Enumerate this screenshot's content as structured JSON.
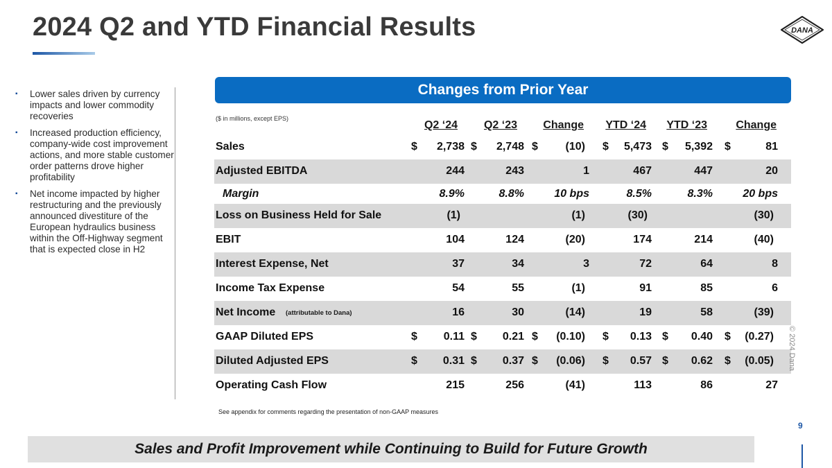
{
  "title": "2024 Q2 and YTD Financial Results",
  "logo_text": "DANA",
  "bullets": [
    "Lower sales driven by currency impacts and lower commodity recoveries",
    "Increased production efficiency, company-wide cost improvement actions, and more stable customer order patterns drove higher profitability",
    "Net income impacted by higher restructuring and the previously announced divestiture of the European hydraulics business within the Off-Highway segment that is expected close in H2"
  ],
  "bullet_marker": "▪",
  "banner": "Changes from Prior Year",
  "units_note": "($ in millions, except EPS)",
  "columns": [
    "Q2 ‘24",
    "Q2 ‘23",
    "Change",
    "YTD ‘24",
    "YTD ‘23",
    "Change"
  ],
  "currency_symbol": "$",
  "rows": [
    {
      "label": "Sales",
      "sub": "",
      "values": [
        "2,738",
        "2,748",
        "(10)",
        "5,473",
        "5,392",
        "81"
      ],
      "dollars": true,
      "shaded": false
    },
    {
      "label": "Adjusted EBITDA",
      "sub": "",
      "values": [
        "244",
        "243",
        "1",
        "467",
        "447",
        "20"
      ],
      "dollars": false,
      "shaded": true
    },
    {
      "label": "Margin",
      "sub": "",
      "values": [
        "8.9%",
        "8.8%",
        "10 bps",
        "8.5%",
        "8.3%",
        "20 bps"
      ],
      "dollars": false,
      "shaded": false,
      "thin": true
    },
    {
      "label": "Loss on Business Held for Sale",
      "sub": "",
      "values": [
        "(1)",
        "",
        "(1)",
        "(30)",
        "",
        "(30)"
      ],
      "dollars": false,
      "shaded": true
    },
    {
      "label": "EBIT",
      "sub": "",
      "values": [
        "104",
        "124",
        "(20)",
        "174",
        "214",
        "(40)"
      ],
      "dollars": false,
      "shaded": false
    },
    {
      "label": "Interest Expense, Net",
      "sub": "",
      "values": [
        "37",
        "34",
        "3",
        "72",
        "64",
        "8"
      ],
      "dollars": false,
      "shaded": true
    },
    {
      "label": "Income Tax Expense",
      "sub": "",
      "values": [
        "54",
        "55",
        "(1)",
        "91",
        "85",
        "6"
      ],
      "dollars": false,
      "shaded": false
    },
    {
      "label": "Net Income",
      "sub": "(attributable to Dana)",
      "values": [
        "16",
        "30",
        "(14)",
        "19",
        "58",
        "(39)"
      ],
      "dollars": false,
      "shaded": true
    },
    {
      "label": "GAAP Diluted EPS",
      "sub": "",
      "values": [
        "0.11",
        "0.21",
        "(0.10)",
        "0.13",
        "0.40",
        "(0.27)"
      ],
      "dollars": true,
      "shaded": false
    },
    {
      "label": "Diluted Adjusted EPS",
      "sub": "",
      "values": [
        "0.31",
        "0.37",
        "(0.06)",
        "0.57",
        "0.62",
        "(0.05)"
      ],
      "dollars": true,
      "shaded": true
    },
    {
      "label": "Operating Cash Flow",
      "sub": "",
      "values": [
        "215",
        "256",
        "(41)",
        "113",
        "86",
        "27"
      ],
      "dollars": false,
      "shaded": false
    }
  ],
  "footnote": "See appendix for comments regarding the presentation of non-GAAP measures",
  "copyright": "© 2024 Dana",
  "page_number": "9",
  "tagline": "Sales and Profit Improvement while Continuing to Build for Future Growth",
  "colors": {
    "accent": "#0a6cc2",
    "brand_blue": "#1d57a6",
    "row_shade": "#d9d9d9",
    "tagline_bg": "#e0e0e0"
  }
}
